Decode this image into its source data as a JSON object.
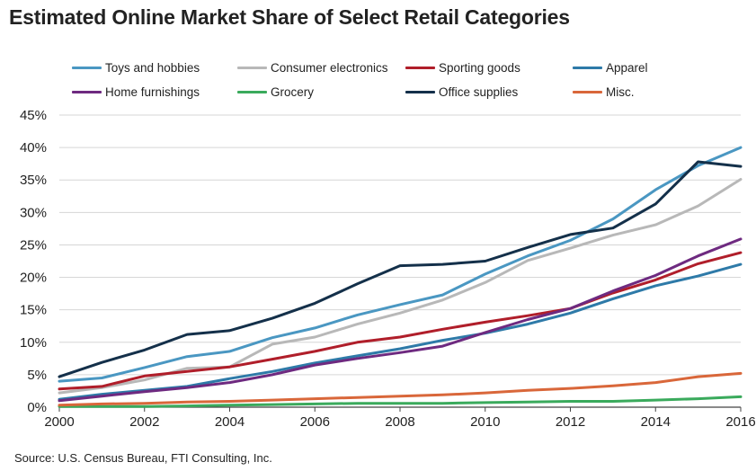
{
  "title": "Estimated Online Market Share of Select Retail Categories",
  "source": "Source: U.S. Census Bureau, FTI Consulting, Inc.",
  "chart_data": {
    "type": "line",
    "title": "Estimated Online Market Share of Select Retail Categories",
    "xlabel": "",
    "ylabel": "",
    "xlim": [
      2000,
      2016
    ],
    "ylim": [
      0,
      45
    ],
    "grid": true,
    "legend_position": "top",
    "x_ticks": [
      "2000",
      "2002",
      "2004",
      "2006",
      "2008",
      "2010",
      "2012",
      "2014",
      "2016"
    ],
    "y_ticks": [
      "0%",
      "5%",
      "10%",
      "15%",
      "20%",
      "25%",
      "30%",
      "35%",
      "40%",
      "45%"
    ],
    "x": [
      2000,
      2001,
      2002,
      2003,
      2004,
      2005,
      2006,
      2007,
      2008,
      2009,
      2010,
      2011,
      2012,
      2013,
      2014,
      2015,
      2016
    ],
    "series": [
      {
        "name": "Toys and hobbies",
        "color": "#4a97c2",
        "values": [
          4.0,
          4.5,
          6.1,
          7.8,
          8.6,
          10.7,
          12.2,
          14.2,
          15.8,
          17.3,
          20.5,
          23.3,
          25.7,
          29.0,
          33.5,
          37.2,
          40.0
        ]
      },
      {
        "name": "Consumer electronics",
        "color": "#b8b8b8",
        "values": [
          2.2,
          3.0,
          4.2,
          6.0,
          6.2,
          9.7,
          10.8,
          12.8,
          14.5,
          16.5,
          19.2,
          22.6,
          24.5,
          26.5,
          28.1,
          31.0,
          35.1
        ]
      },
      {
        "name": "Sporting goods",
        "color": "#b01e2a",
        "values": [
          2.8,
          3.2,
          4.8,
          5.5,
          6.2,
          7.4,
          8.6,
          10.0,
          10.8,
          12.0,
          13.1,
          14.1,
          15.2,
          17.6,
          19.6,
          22.1,
          23.8
        ]
      },
      {
        "name": "Apparel",
        "color": "#2e7aa8",
        "values": [
          1.2,
          2.0,
          2.6,
          3.2,
          4.4,
          5.5,
          6.8,
          7.9,
          9.0,
          10.3,
          11.4,
          12.8,
          14.5,
          16.7,
          18.7,
          20.2,
          22.0
        ]
      },
      {
        "name": "Home furnishings",
        "color": "#6e2a80",
        "values": [
          1.0,
          1.7,
          2.4,
          3.0,
          3.8,
          5.0,
          6.5,
          7.5,
          8.4,
          9.4,
          11.5,
          13.5,
          15.2,
          17.9,
          20.3,
          23.3,
          25.9
        ]
      },
      {
        "name": "Grocery",
        "color": "#3aaa5c",
        "values": [
          0.1,
          0.1,
          0.1,
          0.2,
          0.3,
          0.4,
          0.5,
          0.6,
          0.6,
          0.6,
          0.7,
          0.8,
          0.9,
          0.9,
          1.1,
          1.3,
          1.6
        ]
      },
      {
        "name": "Office supplies",
        "color": "#14304a",
        "values": [
          4.7,
          6.9,
          8.8,
          11.2,
          11.8,
          13.7,
          16.0,
          19.0,
          21.8,
          22.0,
          22.5,
          24.6,
          26.6,
          27.6,
          31.3,
          37.8,
          37.1
        ]
      },
      {
        "name": "Misc.",
        "color": "#d9673a",
        "values": [
          0.3,
          0.5,
          0.6,
          0.8,
          0.9,
          1.1,
          1.3,
          1.5,
          1.7,
          1.9,
          2.2,
          2.6,
          2.9,
          3.3,
          3.8,
          4.7,
          5.2
        ]
      }
    ]
  }
}
